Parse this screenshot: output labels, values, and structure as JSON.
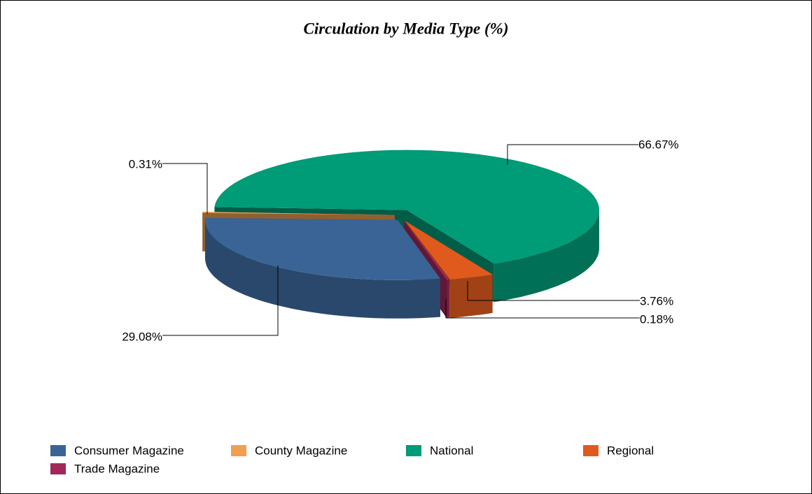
{
  "chart_data": {
    "type": "pie",
    "title": "Circulation by Media Type (%)",
    "categories": [
      "Consumer Magazine",
      "County Magazine",
      "National",
      "Regional",
      "Trade Magazine"
    ],
    "values": [
      29.08,
      0.31,
      66.67,
      3.76,
      0.18
    ],
    "value_labels": [
      "29.08%",
      "0.31%",
      "66.67%",
      "3.76%",
      "0.18%"
    ],
    "colors": [
      "#3a6496",
      "#f0a050",
      "#009b77",
      "#e05a1e",
      "#a0285a"
    ],
    "legend": "bottom"
  }
}
